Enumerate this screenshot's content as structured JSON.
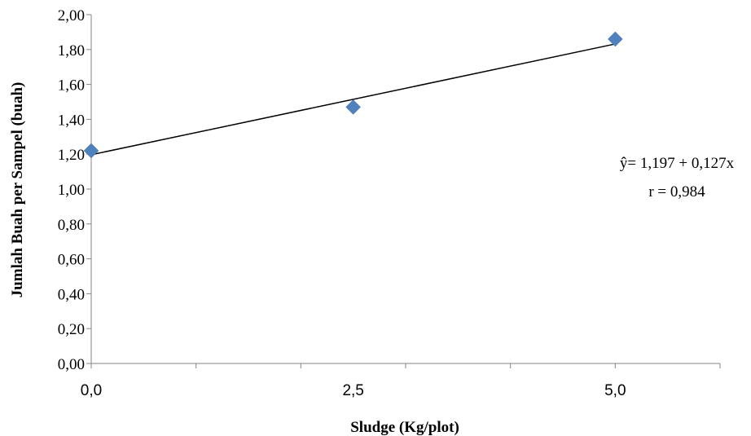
{
  "chart_data": {
    "type": "scatter",
    "xlabel": "Sludge (Kg/plot)",
    "ylabel": "Jumlah Buah per Sampel (buah)",
    "xlim": [
      0,
      6
    ],
    "ylim": [
      0,
      2
    ],
    "x_ticks": [
      "0,0",
      "2,5",
      "5,0"
    ],
    "y_ticks": [
      "0,00",
      "0,20",
      "0,40",
      "0,60",
      "0,80",
      "1,00",
      "1,20",
      "1,40",
      "1,60",
      "1,80",
      "2,00"
    ],
    "series": [
      {
        "x": [
          0.0,
          2.5,
          5.0
        ],
        "y": [
          1.22,
          1.47,
          1.86
        ]
      }
    ],
    "trendline": {
      "intercept": 1.197,
      "slope": 0.127,
      "x_range": [
        0,
        5
      ]
    },
    "annotations": {
      "equation": "ŷ= 1,197 + 0,127x",
      "r": "r = 0,984"
    },
    "marker_color": "#4F81BD",
    "line_color": "#000000",
    "grid": false
  }
}
